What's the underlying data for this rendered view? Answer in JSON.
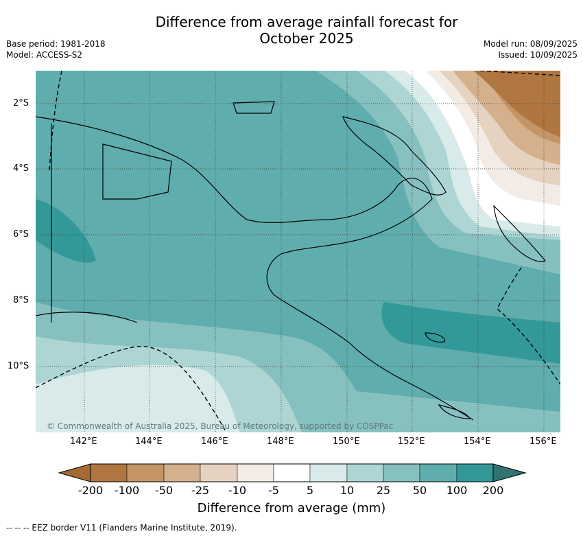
{
  "title_line1": "Difference from average rainfall forecast for",
  "title_line2": "October 2025",
  "meta_left": {
    "base_period": "Base period: 1981-2018",
    "model": "Model: ACCESS-S2"
  },
  "meta_right": {
    "model_run": "Model run: 08/09/2025",
    "issued": "Issued: 10/09/2025"
  },
  "lat_labels": [
    "2°S",
    "4°S",
    "6°S",
    "8°S",
    "10°S"
  ],
  "lon_labels": [
    "142°E",
    "144°E",
    "146°E",
    "148°E",
    "150°E",
    "152°E",
    "154°E",
    "156°E"
  ],
  "copyright": "© Commonwealth of Australia 2025, Bureau of Meteorology, supported by COSPPac",
  "colorbar": {
    "title": "Difference from average (mm)",
    "tick_labels": [
      "-200",
      "-100",
      "-50",
      "-25",
      "-10",
      "-5",
      "5",
      "10",
      "25",
      "50",
      "100",
      "200"
    ],
    "colors": [
      "#a26a34",
      "#b07641",
      "#c49566",
      "#d5b08c",
      "#e6d2c0",
      "#f3ece6",
      "#ffffff",
      "#d8ebea",
      "#acd5d4",
      "#86c0bf",
      "#5fadac",
      "#339998",
      "#307372"
    ]
  },
  "footnote": "--  --  -- EEZ border V11 (Flanders Marine Institute, 2019)."
}
